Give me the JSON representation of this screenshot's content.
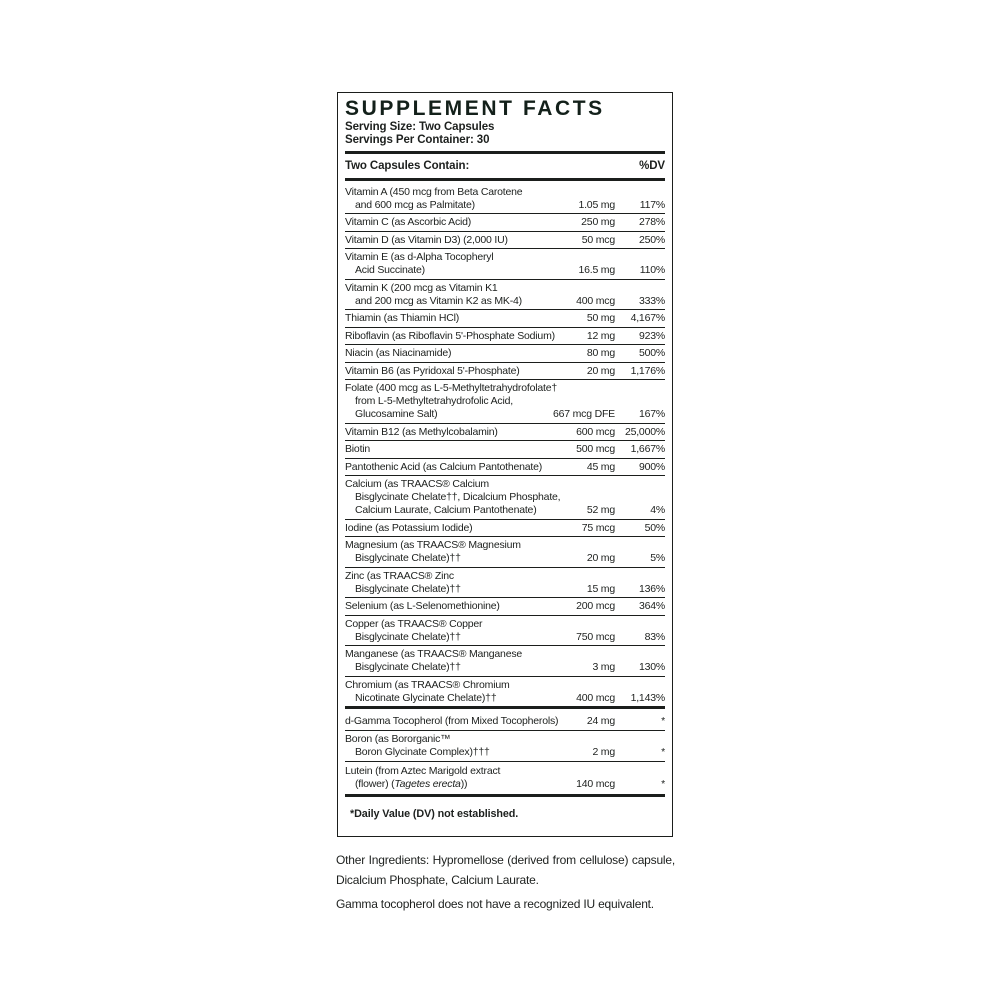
{
  "label": {
    "title": "SUPPLEMENT FACTS",
    "serving_size": "Serving Size: Two Capsules",
    "servings_per_container": "Servings Per Container: 30",
    "contains_header": "Two Capsules Contain:",
    "dv_header": "%DV",
    "main_rows": [
      {
        "name_lines": [
          "Vitamin A (450 mcg from Beta Carotene",
          "and 600 mcg as Palmitate)"
        ],
        "amount": "1.05 mg",
        "dv": "117%"
      },
      {
        "name_lines": [
          "Vitamin C (as Ascorbic Acid)"
        ],
        "amount": "250 mg",
        "dv": "278%"
      },
      {
        "name_lines": [
          "Vitamin D (as Vitamin D3) (2,000 IU)"
        ],
        "amount": "50 mcg",
        "dv": "250%"
      },
      {
        "name_lines": [
          "Vitamin E (as d-Alpha Tocopheryl",
          "Acid Succinate)"
        ],
        "amount": "16.5 mg",
        "dv": "110%"
      },
      {
        "name_lines": [
          "Vitamin K (200 mcg as Vitamin K1",
          "and 200 mcg as Vitamin K2 as MK-4)"
        ],
        "amount": "400 mcg",
        "dv": "333%"
      },
      {
        "name_lines": [
          "Thiamin (as Thiamin HCl)"
        ],
        "amount": "50 mg",
        "dv": "4,167%"
      },
      {
        "name_lines": [
          "Riboflavin (as Riboflavin 5'-Phosphate Sodium)"
        ],
        "amount": "12 mg",
        "dv": "923%"
      },
      {
        "name_lines": [
          "Niacin (as Niacinamide)"
        ],
        "amount": "80 mg",
        "dv": "500%"
      },
      {
        "name_lines": [
          "Vitamin B6 (as Pyridoxal 5'-Phosphate)"
        ],
        "amount": "20 mg",
        "dv": "1,176%"
      },
      {
        "name_lines": [
          "Folate (400 mcg as L-5-Methyltetrahydrofolate†",
          "from L-5-Methyltetrahydrofolic Acid,",
          "Glucosamine Salt)"
        ],
        "amount": "667 mcg DFE",
        "dv": "167%"
      },
      {
        "name_lines": [
          "Vitamin B12 (as Methylcobalamin)"
        ],
        "amount": "600 mcg",
        "dv": "25,000%"
      },
      {
        "name_lines": [
          "Biotin"
        ],
        "amount": "500 mcg",
        "dv": "1,667%"
      },
      {
        "name_lines": [
          "Pantothenic Acid (as Calcium Pantothenate)"
        ],
        "amount": "45 mg",
        "dv": "900%"
      },
      {
        "name_lines": [
          "Calcium (as TRAACS® Calcium",
          "Bisglycinate Chelate††, Dicalcium Phosphate,",
          "Calcium Laurate, Calcium Pantothenate)"
        ],
        "amount": "52 mg",
        "dv": "4%"
      },
      {
        "name_lines": [
          "Iodine (as Potassium Iodide)"
        ],
        "amount": "75 mcg",
        "dv": "50%"
      },
      {
        "name_lines": [
          "Magnesium (as TRAACS® Magnesium",
          "Bisglycinate Chelate)††"
        ],
        "amount": "20 mg",
        "dv": "5%"
      },
      {
        "name_lines": [
          "Zinc (as TRAACS® Zinc",
          "Bisglycinate Chelate)††"
        ],
        "amount": "15 mg",
        "dv": "136%"
      },
      {
        "name_lines": [
          "Selenium (as L-Selenomethionine)"
        ],
        "amount": "200 mcg",
        "dv": "364%"
      },
      {
        "name_lines": [
          "Copper (as TRAACS® Copper",
          "Bisglycinate Chelate)††"
        ],
        "amount": "750 mcg",
        "dv": "83%"
      },
      {
        "name_lines": [
          "Manganese (as TRAACS® Manganese",
          "Bisglycinate Chelate)††"
        ],
        "amount": "3 mg",
        "dv": "130%"
      },
      {
        "name_lines": [
          "Chromium (as TRAACS® Chromium",
          "Nicotinate Glycinate Chelate)††"
        ],
        "amount": "400 mcg",
        "dv": "1,143%"
      }
    ],
    "no_dv_rows": [
      {
        "name_lines": [
          "d-Gamma Tocopherol (from Mixed Tocopherols)"
        ],
        "amount": "24 mg",
        "dv": "*"
      },
      {
        "name_lines": [
          "Boron (as Bororganic™",
          "Boron Glycinate Complex)†††"
        ],
        "amount": "2 mg",
        "dv": "*"
      },
      {
        "name_lines": [
          "Lutein (from Aztec Marigold extract",
          "(flower) (Tagetes erecta))"
        ],
        "amount": "140 mcg",
        "dv": "*",
        "italic": "Tagetes erecta"
      }
    ],
    "footnote": "*Daily Value (DV) not established."
  },
  "notes": {
    "other_ingredients": "Other Ingredients: Hypromellose (derived from cellulose) capsule, Dicalcium Phosphate, Calcium Laurate.",
    "gamma_note": "Gamma tocopherol does not have a recognized IU equivalent."
  },
  "colors": {
    "ink": "#1d201e",
    "title_ink": "#13201a",
    "rule": "#1b1e1c"
  }
}
